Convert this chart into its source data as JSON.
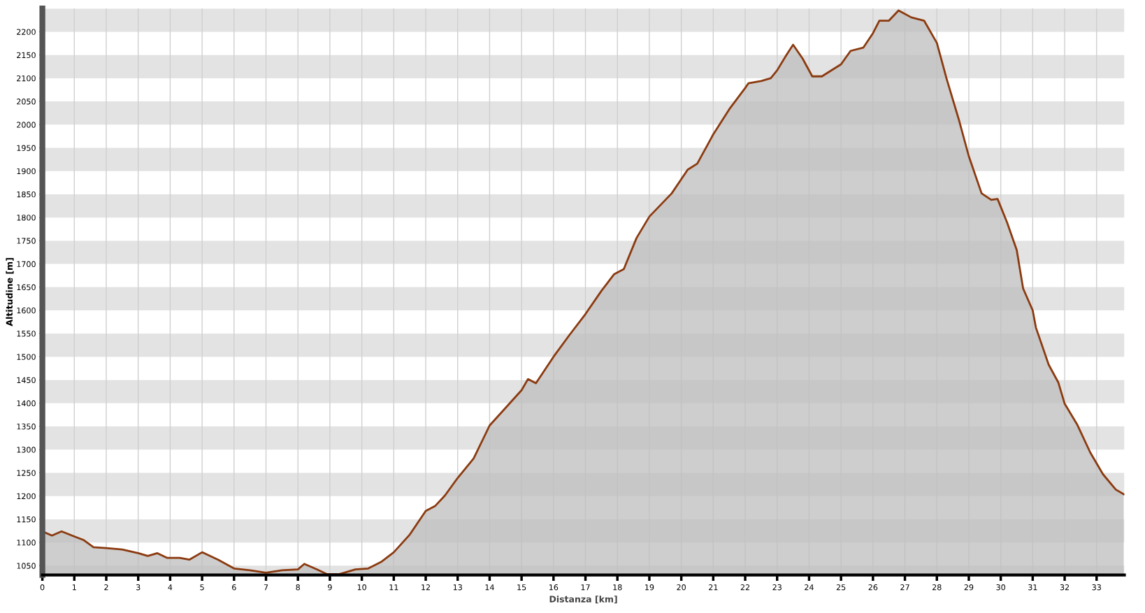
{
  "chart_data": {
    "type": "area",
    "xlabel": "Distanza [km]",
    "ylabel": "Altitudine [m]",
    "xlim": [
      0,
      33.87
    ],
    "ylim": [
      1030,
      2250
    ],
    "xticks": [
      0,
      1,
      2,
      3,
      4,
      5,
      6,
      7,
      8,
      9,
      10,
      11,
      12,
      13,
      14,
      15,
      16,
      17,
      18,
      19,
      20,
      21,
      22,
      23,
      24,
      25,
      26,
      27,
      28,
      29,
      30,
      31,
      32,
      33
    ],
    "yticks": [
      1050,
      1100,
      1150,
      1200,
      1250,
      1300,
      1350,
      1400,
      1450,
      1500,
      1550,
      1600,
      1650,
      1700,
      1750,
      1800,
      1850,
      1900,
      1950,
      2000,
      2050,
      2100,
      2150,
      2200
    ],
    "grid": true,
    "series": [
      {
        "color": "#8b3a0f",
        "x": [
          0,
          0.3,
          0.6,
          1.0,
          1.3,
          1.6,
          2.0,
          2.5,
          3.0,
          3.3,
          3.6,
          3.9,
          4.3,
          4.6,
          5.0,
          5.5,
          6.0,
          6.5,
          7.0,
          7.5,
          8.0,
          8.2,
          8.6,
          8.9,
          9.3,
          9.8,
          10.2,
          10.6,
          11.0,
          11.5,
          12.0,
          12.3,
          12.6,
          13.0,
          13.5,
          14.0,
          14.5,
          15.0,
          15.2,
          15.45,
          16.0,
          16.5,
          17.0,
          17.5,
          17.9,
          18.2,
          18.6,
          19.0,
          19.7,
          20.2,
          20.5,
          21.0,
          21.5,
          22.0,
          22.1,
          22.5,
          22.8,
          23.0,
          23.3,
          23.5,
          23.8,
          24.1,
          24.4,
          25.0,
          25.3,
          25.7,
          26.0,
          26.2,
          26.5,
          26.8,
          27.2,
          27.6,
          28.0,
          28.3,
          28.7,
          29.0,
          29.4,
          29.7,
          29.9,
          30.2,
          30.5,
          30.7,
          31.0,
          31.1,
          31.5,
          31.8,
          32.0,
          32.4,
          32.8,
          33.2,
          33.6,
          33.85
        ],
        "values": [
          1124,
          1115,
          1124,
          1113,
          1105,
          1090,
          1088,
          1085,
          1077,
          1071,
          1077,
          1067,
          1067,
          1063,
          1079,
          1063,
          1044,
          1040,
          1035,
          1040,
          1042,
          1054,
          1042,
          1032,
          1032,
          1042,
          1044,
          1058,
          1079,
          1117,
          1168,
          1179,
          1201,
          1239,
          1281,
          1352,
          1390,
          1428,
          1452,
          1443,
          1500,
          1547,
          1592,
          1642,
          1678,
          1689,
          1756,
          1802,
          1852,
          1903,
          1916,
          1979,
          2033,
          2079,
          2089,
          2094,
          2100,
          2117,
          2151,
          2172,
          2142,
          2104,
          2104,
          2130,
          2159,
          2166,
          2197,
          2224,
          2224,
          2246,
          2231,
          2224,
          2176,
          2100,
          2008,
          1932,
          1852,
          1838,
          1840,
          1789,
          1730,
          1647,
          1600,
          1563,
          1483,
          1445,
          1399,
          1353,
          1294,
          1247,
          1214,
          1204
        ]
      }
    ]
  }
}
